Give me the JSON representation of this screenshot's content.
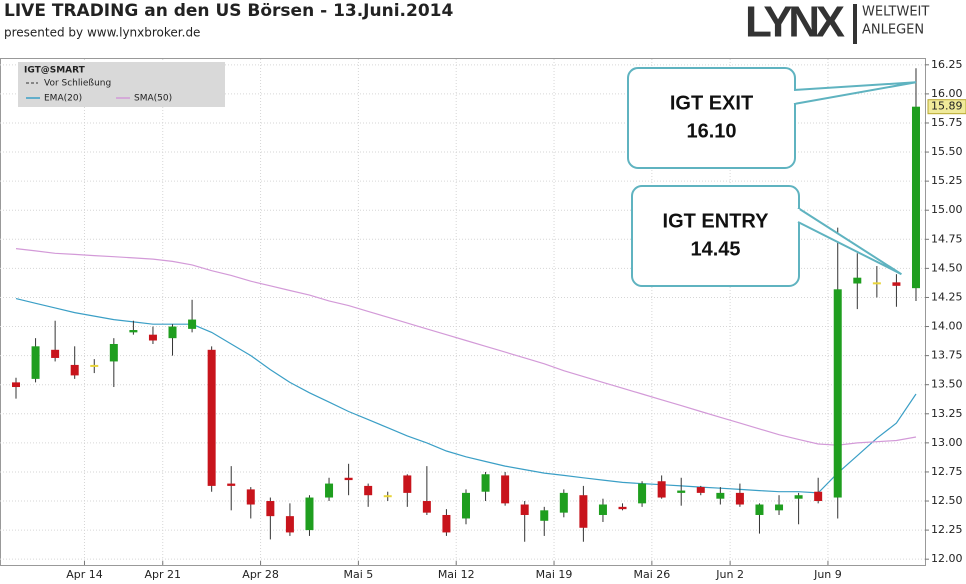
{
  "chart_data": {
    "type": "candlestick",
    "title": "LIVE TRADING an den US Börsen - 13.Juni.2014",
    "subtitle": "presented by www.lynxbroker.de",
    "logo": {
      "name": "LYNX",
      "tagline": [
        "WELTWEIT",
        "ANLEGEN"
      ]
    },
    "legend_title": "IGT@SMART",
    "candle_name": "Vor Schließung",
    "categories": [
      null,
      null,
      null,
      null,
      "Apr 14",
      null,
      null,
      null,
      "Apr 21",
      null,
      null,
      null,
      null,
      "Apr 28",
      null,
      null,
      null,
      null,
      "Mai 5",
      null,
      null,
      null,
      null,
      "Mai 12",
      null,
      null,
      null,
      null,
      "Mai 19",
      null,
      null,
      null,
      null,
      "Mai 26",
      null,
      null,
      null,
      "Jun 2",
      null,
      null,
      null,
      null,
      "Jun 9",
      null,
      null,
      null,
      null
    ],
    "open": [
      13.52,
      13.55,
      13.8,
      13.67,
      13.67,
      13.7,
      13.95,
      13.93,
      13.9,
      13.98,
      13.8,
      12.65,
      12.6,
      12.5,
      12.37,
      12.25,
      12.53,
      12.7,
      12.63,
      12.55,
      12.72,
      12.5,
      12.38,
      12.35,
      12.58,
      12.72,
      12.47,
      12.33,
      12.4,
      12.55,
      12.38,
      12.45,
      12.48,
      12.67,
      12.57,
      12.62,
      12.52,
      12.57,
      12.38,
      12.42,
      12.52,
      12.58,
      12.53,
      14.37,
      14.38,
      14.38,
      14.33
    ],
    "high": [
      13.56,
      13.9,
      14.05,
      13.83,
      13.72,
      13.9,
      14.05,
      14.0,
      14.02,
      14.23,
      13.83,
      12.8,
      12.62,
      12.53,
      12.48,
      12.55,
      12.7,
      12.82,
      12.65,
      12.58,
      12.73,
      12.8,
      12.43,
      12.6,
      12.75,
      12.75,
      12.5,
      12.45,
      12.6,
      12.63,
      12.52,
      12.48,
      12.67,
      12.72,
      12.7,
      12.63,
      12.62,
      12.65,
      12.48,
      12.55,
      12.57,
      12.7,
      14.85,
      14.63,
      14.52,
      14.45,
      16.22
    ],
    "low": [
      13.38,
      13.52,
      13.7,
      13.55,
      13.6,
      13.48,
      13.93,
      13.85,
      13.75,
      13.95,
      12.58,
      12.42,
      12.35,
      12.17,
      12.2,
      12.2,
      12.5,
      12.55,
      12.45,
      12.5,
      12.45,
      12.38,
      12.2,
      12.3,
      12.5,
      12.46,
      12.15,
      12.2,
      12.36,
      12.15,
      12.32,
      12.42,
      12.45,
      12.52,
      12.46,
      12.55,
      12.47,
      12.45,
      12.22,
      12.38,
      12.3,
      12.48,
      12.35,
      14.15,
      14.25,
      14.17,
      14.22
    ],
    "close": [
      13.48,
      13.83,
      13.73,
      13.58,
      13.67,
      13.85,
      13.97,
      13.88,
      14.0,
      14.06,
      12.63,
      12.63,
      12.47,
      12.37,
      12.23,
      12.53,
      12.65,
      12.68,
      12.55,
      12.55,
      12.57,
      12.4,
      12.23,
      12.57,
      12.73,
      12.48,
      12.38,
      12.42,
      12.57,
      12.27,
      12.47,
      12.43,
      12.65,
      12.53,
      12.59,
      12.57,
      12.57,
      12.47,
      12.47,
      12.47,
      12.55,
      12.5,
      14.32,
      14.42,
      14.38,
      14.35,
      15.89
    ],
    "colors": {
      "up": "#1f9e1f",
      "down": "#c8141c",
      "flat": "#e8d43a"
    },
    "series": [
      {
        "name": "EMA(20)",
        "color": "#3b9fc6",
        "values": [
          14.24,
          14.2,
          14.16,
          14.12,
          14.09,
          14.06,
          14.04,
          14.02,
          14.02,
          14.02,
          13.95,
          13.85,
          13.75,
          13.63,
          13.52,
          13.43,
          13.35,
          13.27,
          13.2,
          13.13,
          13.06,
          13.0,
          12.93,
          12.88,
          12.84,
          12.8,
          12.77,
          12.74,
          12.72,
          12.7,
          12.68,
          12.66,
          12.65,
          12.64,
          12.63,
          12.62,
          12.61,
          12.6,
          12.59,
          12.58,
          12.58,
          12.57,
          12.74,
          12.89,
          13.04,
          13.17,
          13.42
        ]
      },
      {
        "name": "SMA(50)",
        "color": "#d39ad8",
        "values": [
          14.67,
          14.65,
          14.63,
          14.62,
          14.61,
          14.6,
          14.59,
          14.58,
          14.56,
          14.53,
          14.48,
          14.44,
          14.39,
          14.35,
          14.31,
          14.27,
          14.22,
          14.18,
          14.13,
          14.08,
          14.03,
          13.98,
          13.93,
          13.88,
          13.83,
          13.78,
          13.73,
          13.68,
          13.62,
          13.57,
          13.52,
          13.47,
          13.42,
          13.37,
          13.32,
          13.27,
          13.22,
          13.17,
          13.12,
          13.07,
          13.03,
          12.99,
          12.98,
          13.0,
          13.01,
          13.02,
          13.05
        ]
      }
    ],
    "annotations": [
      {
        "text": "IGT EXIT",
        "value": 16.1,
        "value_label": "16.10"
      },
      {
        "text": "IGT ENTRY",
        "value": 14.45,
        "value_label": "14.45"
      }
    ],
    "ylim": [
      11.95,
      16.3
    ],
    "yticks": [
      {
        "value": 12,
        "label": "12.00"
      },
      {
        "value": 12.25,
        "label": "12.25"
      },
      {
        "value": 12.5,
        "label": "12.50"
      },
      {
        "value": 12.75,
        "label": "12.75"
      },
      {
        "value": 13,
        "label": "13.00"
      },
      {
        "value": 13.25,
        "label": "13.25"
      },
      {
        "value": 13.5,
        "label": "13.50"
      },
      {
        "value": 13.75,
        "label": "13.75"
      },
      {
        "value": 14,
        "label": "14.00"
      },
      {
        "value": 14.25,
        "label": "14.25"
      },
      {
        "value": 14.5,
        "label": "14.50"
      },
      {
        "value": 14.75,
        "label": "14.75"
      },
      {
        "value": 15,
        "label": "15.00"
      },
      {
        "value": 15.25,
        "label": "15.25"
      },
      {
        "value": 15.5,
        "label": "15.50"
      },
      {
        "value": 15.75,
        "label": "15.75"
      },
      {
        "value": 16,
        "label": "16.00"
      },
      {
        "value": 16.25,
        "label": "16.25"
      }
    ],
    "grid": true
  }
}
